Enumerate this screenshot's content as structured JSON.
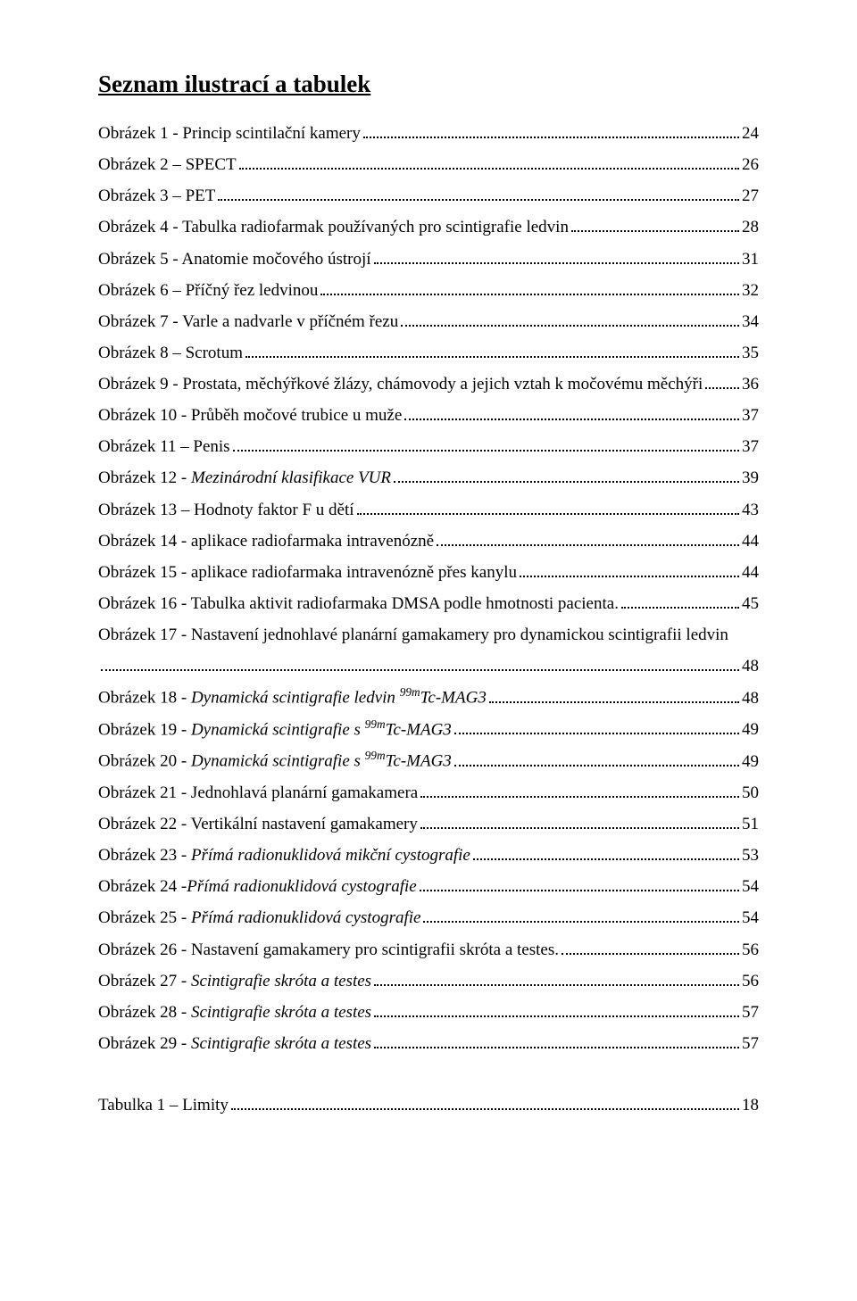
{
  "heading": "Seznam ilustrací a tabulek",
  "entries": [
    {
      "label": "Obrázek 1 - Princip scintilační kamery",
      "page": "24",
      "italic": false
    },
    {
      "label": "Obrázek 2 – SPECT",
      "page": "26",
      "italic": false
    },
    {
      "label": "Obrázek 3 – PET",
      "page": "27",
      "italic": false
    },
    {
      "label": "Obrázek 4 - Tabulka radiofarmak používaných pro scintigrafie ledvin",
      "page": "28",
      "italic": false
    },
    {
      "label": "Obrázek 5 - Anatomie močového ústrojí",
      "page": "31",
      "italic": false
    },
    {
      "label": "Obrázek 6 – Příčný řez ledvinou",
      "page": "32",
      "italic": false
    },
    {
      "label": "Obrázek 7 - Varle a nadvarle v příčném řezu",
      "page": "34",
      "italic": false
    },
    {
      "label": "Obrázek 8 – Scrotum",
      "page": "35",
      "italic": false
    },
    {
      "label": "Obrázek 9 - Prostata, měchýřkové žlázy, chámovody a jejich vztah k močovému měchýři",
      "page": "36",
      "italic": false
    },
    {
      "label": "Obrázek 10 - Průběh močové trubice u muže",
      "page": "37",
      "italic": false
    },
    {
      "label": "Obrázek 11 – Penis",
      "page": "37",
      "italic": false
    },
    {
      "label_prefix": "Obrázek 12 - ",
      "label_italic": "Mezinárodní klasifikace VUR",
      "page": "39",
      "mixed": true
    },
    {
      "label": "Obrázek 13 – Hodnoty faktor F u dětí",
      "page": "43",
      "italic": false
    },
    {
      "label": "Obrázek 14 - aplikace radiofarmaka intravenózně",
      "page": "44",
      "italic": false
    },
    {
      "label": "Obrázek 15 - aplikace radiofarmaka intravenózně přes kanylu",
      "page": "44",
      "italic": false
    },
    {
      "label": "Obrázek 16 - Tabulka aktivit radiofarmaka DMSA podle hmotnosti pacienta.",
      "page": "45",
      "italic": false
    },
    {
      "label": "Obrázek 17 - Nastavení jednohlavé planární gamakamery pro dynamickou scintigrafii ledvin",
      "page": "48",
      "italic": false,
      "wrap": true
    },
    {
      "label_prefix": "Obrázek 18 - ",
      "label_italic": "Dynamická scintigrafie ledvin ",
      "label_sup": "99m",
      "label_after_sup": "Tc-MAG3",
      "page": "48",
      "mixed": true,
      "has_sup": true
    },
    {
      "label_prefix": "Obrázek 19 - ",
      "label_italic": "Dynamická scintigrafie s ",
      "label_sup": "99m",
      "label_after_sup": "Tc-MAG3",
      "page": "49",
      "mixed": true,
      "has_sup": true
    },
    {
      "label_prefix": "Obrázek 20 - ",
      "label_italic": "Dynamická scintigrafie s ",
      "label_sup": "99m",
      "label_after_sup": "Tc-MAG3",
      "page": "49",
      "mixed": true,
      "has_sup": true
    },
    {
      "label": "Obrázek 21 - Jednohlavá planární gamakamera",
      "page": "50",
      "italic": false
    },
    {
      "label": "Obrázek 22 - Vertikální nastavení gamakamery",
      "page": "51",
      "italic": false
    },
    {
      "label_prefix": "Obrázek 23 - ",
      "label_italic": "Přímá radionuklidová mikční cystografie",
      "page": "53",
      "mixed": true
    },
    {
      "label_prefix": "Obrázek 24 -",
      "label_italic": "Přímá radionuklidová cystografie",
      "page": "54",
      "mixed": true
    },
    {
      "label_prefix": "Obrázek 25 - ",
      "label_italic": "Přímá radionuklidová cystografie",
      "page": "54",
      "mixed": true
    },
    {
      "label": "Obrázek 26 - Nastavení gamakamery pro scintigrafii skróta a testes.",
      "page": "56",
      "italic": false
    },
    {
      "label_prefix": "Obrázek 27 - ",
      "label_italic": "Scintigrafie skróta a testes",
      "page": "56",
      "mixed": true
    },
    {
      "label_prefix": "Obrázek 28 - ",
      "label_italic": "Scintigrafie skróta a testes",
      "page": "57",
      "mixed": true
    },
    {
      "label_prefix": "Obrázek 29 - ",
      "label_italic": "Scintigrafie skróta a testes",
      "page": "57",
      "mixed": true
    }
  ],
  "table_entry": {
    "label": "Tabulka 1 – Limity",
    "page": "18"
  }
}
